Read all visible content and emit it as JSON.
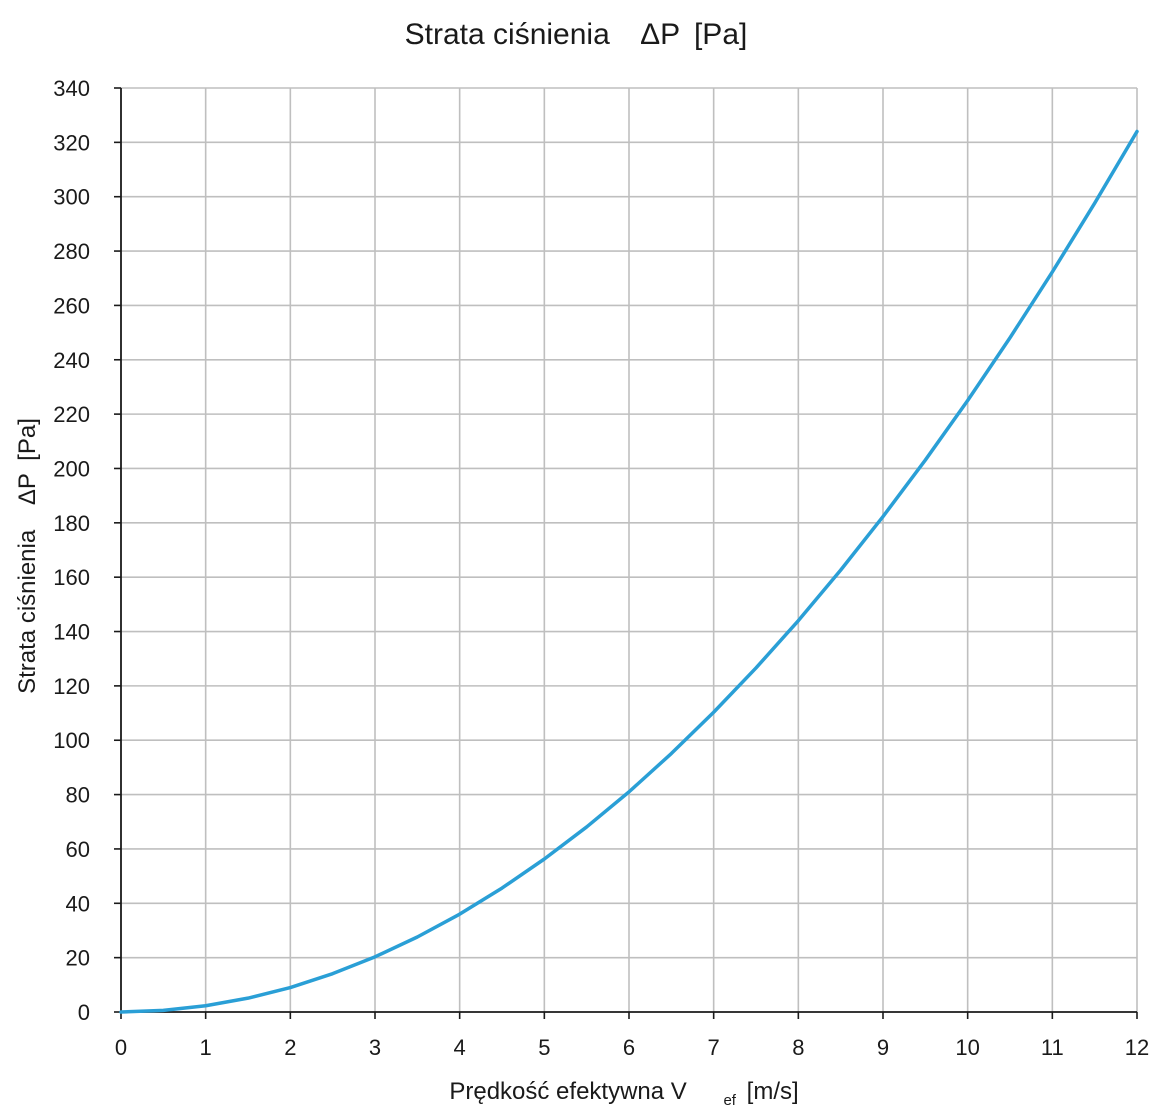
{
  "chart_data": {
    "type": "line",
    "title": {
      "prefix": "Strata ciśnienia",
      "symbol": "ΔP",
      "unit": "[Pa]"
    },
    "xlabel": {
      "prefix": "Prędkość efektywna V",
      "subscript": "ef",
      "unit": "[m/s]"
    },
    "ylabel": {
      "prefix": "Strata ciśnienia",
      "symbol": "ΔP",
      "unit": "[Pa]"
    },
    "xlim": [
      0,
      12
    ],
    "ylim": [
      0,
      340
    ],
    "x_ticks": [
      0,
      1,
      2,
      3,
      4,
      5,
      6,
      7,
      8,
      9,
      10,
      11,
      12
    ],
    "y_ticks": [
      0,
      20,
      40,
      60,
      80,
      100,
      120,
      140,
      160,
      180,
      200,
      220,
      240,
      260,
      280,
      300,
      320,
      340
    ],
    "grid": true,
    "colors": {
      "line": "#2a9fd6",
      "grid": "#bfbfbf",
      "axis": "#1a1a1a"
    },
    "series": [
      {
        "x": [
          0,
          0.5,
          1,
          1.5,
          2,
          2.5,
          3,
          3.5,
          4,
          4.5,
          5,
          5.5,
          6,
          6.5,
          7,
          7.5,
          8,
          8.5,
          9,
          9.5,
          10,
          10.5,
          11,
          11.5,
          12
        ],
        "values": [
          0,
          0.6,
          2.3,
          5.1,
          9,
          14.1,
          20.3,
          27.6,
          36,
          45.6,
          56.3,
          68.1,
          81,
          95.1,
          110.3,
          126.6,
          144,
          162.6,
          182.3,
          203.1,
          225,
          248.1,
          272.3,
          297.6,
          324
        ]
      }
    ]
  }
}
